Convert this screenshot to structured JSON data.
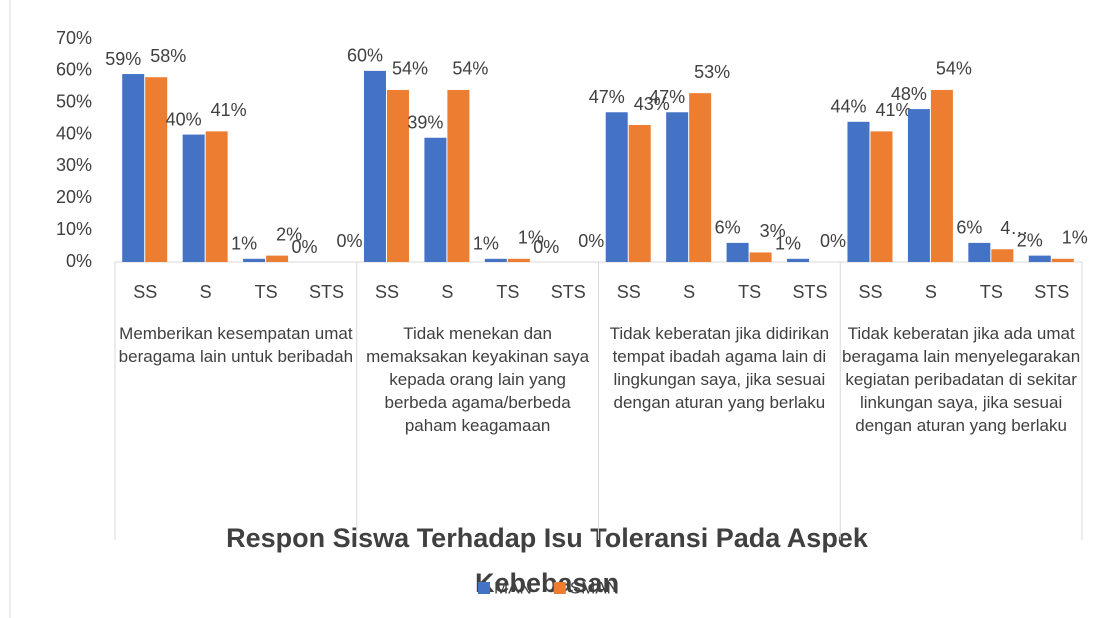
{
  "chart_data": {
    "type": "bar",
    "title": "Respon Siswa Terhadap Isu Toleransi Pada Aspek Kebebasan",
    "categories": [
      "SS",
      "S",
      "TS",
      "STS",
      "SS",
      "S",
      "TS",
      "STS",
      "SS",
      "S",
      "TS",
      "STS",
      "SS",
      "S",
      "TS",
      "STS"
    ],
    "groups": [
      "Memberikan kesempatan umat beragama lain untuk beribadah",
      "Tidak menekan dan memaksakan keyakinan saya kepada orang lain yang berbeda agama/berbeda paham keagamaan",
      "Tidak keberatan  jika didirikan tempat ibadah agama lain di lingkungan saya, jika sesuai dengan aturan yang berlaku",
      "Tidak keberatan jika ada umat beragama lain menyelegarakan kegiatan peribadatan di sekitar linkungan saya, jika sesuai dengan aturan yang berlaku"
    ],
    "series": [
      {
        "name": "MAN",
        "color": "#4472c4",
        "values": [
          59,
          40,
          1,
          0,
          60,
          39,
          1,
          0,
          47,
          47,
          6,
          1,
          44,
          48,
          6,
          2
        ],
        "value_labels": [
          "59%",
          "40%",
          "1%",
          "0%",
          "60%",
          "39%",
          "1%",
          "0%",
          "47%",
          "47%",
          "6%",
          "1%",
          "44%",
          "48%",
          "6%",
          "2%"
        ]
      },
      {
        "name": "SMAN",
        "color": "#ed7d31",
        "values": [
          58,
          41,
          2,
          0,
          54,
          54,
          1,
          0,
          43,
          53,
          3,
          0,
          41,
          54,
          4,
          1
        ],
        "value_labels": [
          "58%",
          "41%",
          "2%",
          "0%",
          "54%",
          "54%",
          "1%",
          "0%",
          "43%",
          "53%",
          "3%",
          "0%",
          "41%",
          "54%",
          "4…",
          "1%"
        ]
      }
    ],
    "ylim": [
      0,
      70
    ],
    "yticks": [
      {
        "value": 0,
        "label": "0%"
      },
      {
        "value": 10,
        "label": "10%"
      },
      {
        "value": 20,
        "label": "20%"
      },
      {
        "value": 30,
        "label": "30%"
      },
      {
        "value": 40,
        "label": "40%"
      },
      {
        "value": 50,
        "label": "50%"
      },
      {
        "value": 60,
        "label": "60%"
      },
      {
        "value": 70,
        "label": "70%"
      }
    ],
    "grid": false,
    "legend": "bottom"
  }
}
